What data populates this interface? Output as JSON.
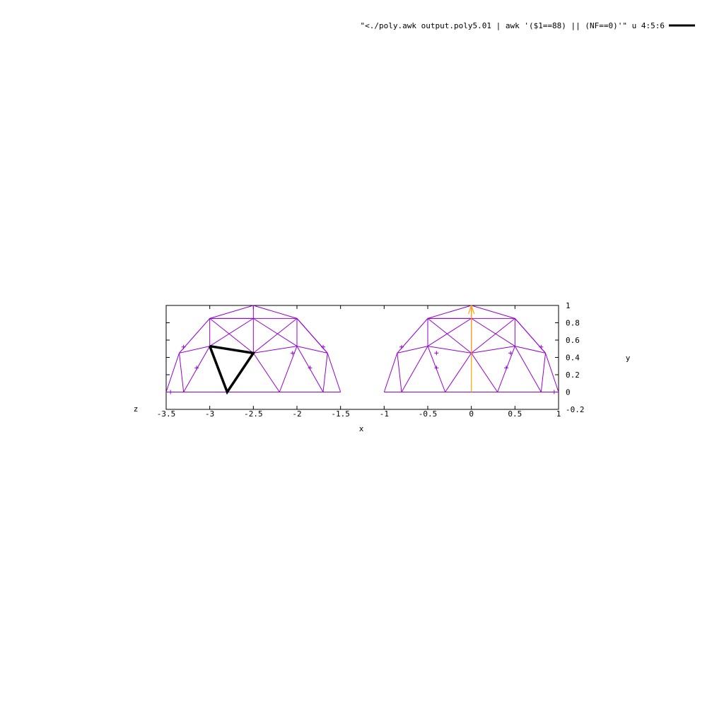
{
  "chart_data": {
    "type": "line",
    "view": "3d-projection-xy",
    "xlabel": "x",
    "ylabel": "y",
    "zlabel": "z",
    "xlim": [
      -3.5,
      1
    ],
    "ylim": [
      -0.2,
      1
    ],
    "x_ticks": [
      "-3.5",
      "-3",
      "-2.5",
      "-2",
      "-1.5",
      "-1",
      "-0.5",
      "0",
      "0.5",
      "1"
    ],
    "x_tick_values": [
      -3.5,
      -3,
      -2.5,
      -2,
      -1.5,
      -1,
      -0.5,
      0,
      0.5,
      1
    ],
    "y_ticks": [
      "-0.2",
      "0",
      "0.2",
      "0.4",
      "0.6",
      "0.8",
      "1"
    ],
    "y_tick_values": [
      -0.2,
      0,
      0.2,
      0.4,
      0.6,
      0.8,
      1
    ],
    "legend": {
      "label": "\"<./poly.awk output.poly5.01 | awk '($1==88) || (NF==0)'\" u 4:5:6",
      "placement": "top-right",
      "color": "#000000"
    },
    "mesh_color": "#9400d3",
    "vector_color": "#ffa500",
    "series": [
      {
        "style": "mesh",
        "color": "#9400d3",
        "segments": [
          [
            [
              -3.5,
              0
            ],
            [
              -1.5,
              0
            ]
          ],
          [
            [
              -3.35,
              0.45
            ],
            [
              -3,
              0.53
            ]
          ],
          [
            [
              -3,
              0.53
            ],
            [
              -2.5,
              0.45
            ]
          ],
          [
            [
              -2.5,
              0.45
            ],
            [
              -2,
              0.53
            ]
          ],
          [
            [
              -2,
              0.53
            ],
            [
              -1.65,
              0.45
            ]
          ],
          [
            [
              -3,
              0.85
            ],
            [
              -2,
              0.85
            ]
          ],
          [
            [
              -3.5,
              0
            ],
            [
              -3.35,
              0.45
            ]
          ],
          [
            [
              -3.35,
              0.45
            ],
            [
              -3,
              0.85
            ]
          ],
          [
            [
              -3,
              0.85
            ],
            [
              -2.5,
              1
            ]
          ],
          [
            [
              -2.5,
              1
            ],
            [
              -2,
              0.85
            ]
          ],
          [
            [
              -2,
              0.85
            ],
            [
              -1.65,
              0.45
            ]
          ],
          [
            [
              -1.65,
              0.45
            ],
            [
              -1.5,
              0
            ]
          ],
          [
            [
              -3.35,
              0.45
            ],
            [
              -3.3,
              0
            ]
          ],
          [
            [
              -3.3,
              0
            ],
            [
              -3,
              0.53
            ]
          ],
          [
            [
              -3,
              0.53
            ],
            [
              -2.8,
              0
            ]
          ],
          [
            [
              -2.8,
              0
            ],
            [
              -2.5,
              0.45
            ]
          ],
          [
            [
              -2.5,
              0.45
            ],
            [
              -2.2,
              0
            ]
          ],
          [
            [
              -2.2,
              0
            ],
            [
              -2,
              0.53
            ]
          ],
          [
            [
              -2,
              0.53
            ],
            [
              -1.7,
              0
            ]
          ],
          [
            [
              -1.7,
              0
            ],
            [
              -1.65,
              0.45
            ]
          ],
          [
            [
              -3,
              0.53
            ],
            [
              -3,
              0.85
            ]
          ],
          [
            [
              -3,
              0.85
            ],
            [
              -2.5,
              0.45
            ]
          ],
          [
            [
              -2.5,
              0.45
            ],
            [
              -2.5,
              0.85
            ]
          ],
          [
            [
              -2.5,
              0.85
            ],
            [
              -3,
              0.53
            ]
          ],
          [
            [
              -2.5,
              0.45
            ],
            [
              -2,
              0.85
            ]
          ],
          [
            [
              -2,
              0.85
            ],
            [
              -2,
              0.53
            ]
          ],
          [
            [
              -2.5,
              0.85
            ],
            [
              -2,
              0.53
            ]
          ],
          [
            [
              -2.5,
              0.85
            ],
            [
              -2.5,
              1
            ]
          ],
          [
            [
              -2.5,
              0.85
            ],
            [
              -3,
              0.85
            ]
          ],
          [
            [
              -2,
              0.85
            ],
            [
              -1.65,
              0.45
            ]
          ],
          [
            [
              -1,
              0
            ],
            [
              1,
              0
            ]
          ],
          [
            [
              -0.85,
              0.45
            ],
            [
              -0.5,
              0.53
            ]
          ],
          [
            [
              -0.5,
              0.53
            ],
            [
              0,
              0.45
            ]
          ],
          [
            [
              0,
              0.45
            ],
            [
              0.5,
              0.53
            ]
          ],
          [
            [
              0.5,
              0.53
            ],
            [
              0.85,
              0.45
            ]
          ],
          [
            [
              -0.5,
              0.85
            ],
            [
              0.5,
              0.85
            ]
          ],
          [
            [
              -1,
              0
            ],
            [
              -0.85,
              0.45
            ]
          ],
          [
            [
              -0.85,
              0.45
            ],
            [
              -0.5,
              0.85
            ]
          ],
          [
            [
              -0.5,
              0.85
            ],
            [
              0,
              1
            ]
          ],
          [
            [
              0,
              1
            ],
            [
              0.5,
              0.85
            ]
          ],
          [
            [
              0.5,
              0.85
            ],
            [
              0.85,
              0.45
            ]
          ],
          [
            [
              0.85,
              0.45
            ],
            [
              1,
              0
            ]
          ],
          [
            [
              -0.85,
              0.45
            ],
            [
              -0.8,
              0
            ]
          ],
          [
            [
              -0.8,
              0
            ],
            [
              -0.5,
              0.53
            ]
          ],
          [
            [
              -0.5,
              0.53
            ],
            [
              -0.3,
              0
            ]
          ],
          [
            [
              -0.3,
              0
            ],
            [
              0,
              0.45
            ]
          ],
          [
            [
              0,
              0.45
            ],
            [
              0.3,
              0
            ]
          ],
          [
            [
              0.3,
              0
            ],
            [
              0.5,
              0.53
            ]
          ],
          [
            [
              0.5,
              0.53
            ],
            [
              0.8,
              0
            ]
          ],
          [
            [
              0.8,
              0
            ],
            [
              0.85,
              0.45
            ]
          ],
          [
            [
              -0.5,
              0.53
            ],
            [
              -0.5,
              0.85
            ]
          ],
          [
            [
              -0.5,
              0.85
            ],
            [
              0,
              0.45
            ]
          ],
          [
            [
              0,
              0.45
            ],
            [
              0,
              0.85
            ]
          ],
          [
            [
              0,
              0.85
            ],
            [
              -0.5,
              0.53
            ]
          ],
          [
            [
              0,
              0.45
            ],
            [
              0.5,
              0.85
            ]
          ],
          [
            [
              0.5,
              0.85
            ],
            [
              0.5,
              0.53
            ]
          ],
          [
            [
              0,
              0.85
            ],
            [
              0.5,
              0.53
            ]
          ],
          [
            [
              0,
              0.85
            ],
            [
              0,
              1
            ]
          ],
          [
            [
              0,
              0.85
            ],
            [
              -0.5,
              0.85
            ]
          ],
          [
            [
              0.5,
              0.85
            ],
            [
              0.85,
              0.45
            ]
          ]
        ],
        "ticks": [
          [
            -3.3,
            0.52
          ],
          [
            -3.15,
            0.28
          ],
          [
            -1.7,
            0.52
          ],
          [
            -1.85,
            0.28
          ],
          [
            -0.8,
            0.52
          ],
          [
            -0.4,
            0.28
          ],
          [
            0.8,
            0.52
          ],
          [
            0.4,
            0.28
          ],
          [
            -2.05,
            0.45
          ],
          [
            -0.4,
            0.45
          ],
          [
            0.45,
            0.45
          ],
          [
            -3.45,
            0
          ],
          [
            0.95,
            0
          ]
        ]
      },
      {
        "name": "\"<./poly.awk output.poly5.01 | awk '($1==88) || (NF==0)'\" u 4:5:6",
        "style": "thick",
        "color": "#000000",
        "points": [
          [
            -3,
            0.53
          ],
          [
            -2.5,
            0.45
          ],
          [
            -2.8,
            0
          ],
          [
            -3,
            0.53
          ]
        ]
      },
      {
        "style": "vector",
        "color": "#ffa500",
        "from": [
          0,
          0
        ],
        "to": [
          0,
          1
        ]
      }
    ]
  }
}
